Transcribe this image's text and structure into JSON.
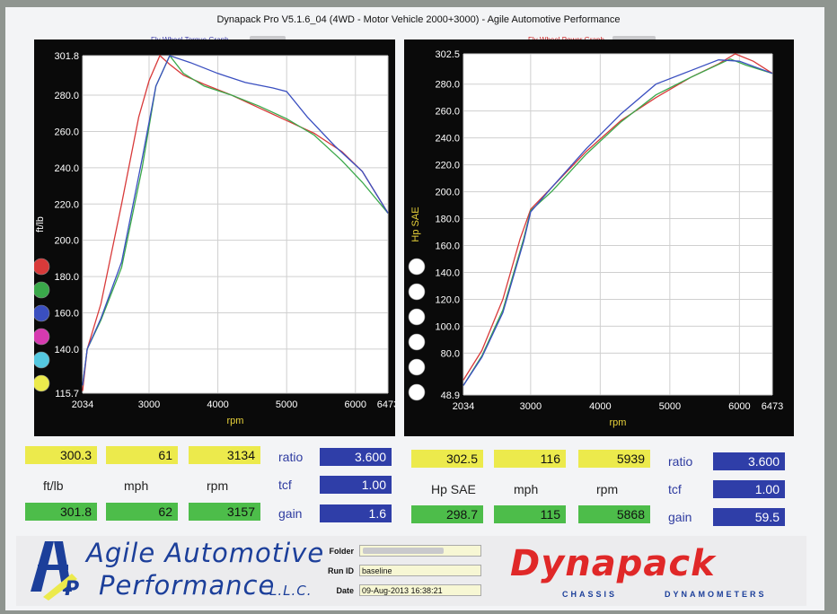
{
  "header": {
    "title": "Dynapack Pro V5.1.6_04 (4WD - Motor Vehicle 2000+3000) - Agile Automotive Performance"
  },
  "chart_data": [
    {
      "type": "line",
      "title": "Fly Wheel Torque Graph",
      "xlabel": "rpm",
      "ylabel": "ft/lb",
      "xlim": [
        2034,
        6473
      ],
      "ylim": [
        115.7,
        301.8
      ],
      "x_ticks": [
        "2034",
        "3000",
        "4000",
        "5000",
        "6000",
        "6473"
      ],
      "y_ticks": [
        "301.8",
        "280.0",
        "260.0",
        "240.0",
        "220.0",
        "200.0",
        "180.0",
        "160.0",
        "140.0",
        "115.7"
      ],
      "x_tick_values": [
        2034,
        3000,
        4000,
        5000,
        6000,
        6473
      ],
      "y_tick_values": [
        301.8,
        280,
        260,
        240,
        220,
        200,
        180,
        160,
        140,
        115.7
      ],
      "grid": true,
      "series": [
        {
          "color": "#d83a3a",
          "points": [
            [
              2034,
              117
            ],
            [
              2100,
              140
            ],
            [
              2300,
              165
            ],
            [
              2600,
              220
            ],
            [
              2850,
              268
            ],
            [
              3000,
              288
            ],
            [
              3157,
              301.8
            ],
            [
              3300,
              297
            ],
            [
              3500,
              291
            ],
            [
              3800,
              286
            ],
            [
              4200,
              280
            ],
            [
              4600,
              273
            ],
            [
              5000,
              266
            ],
            [
              5400,
              259
            ],
            [
              5800,
              249
            ],
            [
              6100,
              238
            ],
            [
              6473,
              215
            ]
          ]
        },
        {
          "color": "#3aa84a",
          "points": [
            [
              2034,
              120
            ],
            [
              2100,
              140
            ],
            [
              2300,
              156
            ],
            [
              2600,
              185
            ],
            [
              2900,
              240
            ],
            [
              3100,
              285
            ],
            [
              3300,
              301.8
            ],
            [
              3500,
              292
            ],
            [
              3800,
              285
            ],
            [
              4200,
              280
            ],
            [
              4600,
              274
            ],
            [
              5000,
              267
            ],
            [
              5400,
              258
            ],
            [
              5800,
              244
            ],
            [
              6100,
              232
            ],
            [
              6473,
              215
            ]
          ]
        },
        {
          "color": "#3a4fc0",
          "points": [
            [
              2034,
              120
            ],
            [
              2100,
              140
            ],
            [
              2300,
              157
            ],
            [
              2600,
              188
            ],
            [
              2900,
              245
            ],
            [
              3100,
              285
            ],
            [
              3300,
              301.8
            ],
            [
              3600,
              298
            ],
            [
              4000,
              292
            ],
            [
              4400,
              287
            ],
            [
              4800,
              284
            ],
            [
              5000,
              282
            ],
            [
              5300,
              268
            ],
            [
              5700,
              252
            ],
            [
              6100,
              238
            ],
            [
              6473,
              215
            ]
          ]
        }
      ]
    },
    {
      "type": "line",
      "title": "Fly Wheel Power Graph",
      "xlabel": "rpm",
      "ylabel": "Hp SAE",
      "xlim": [
        2034,
        6473
      ],
      "ylim": [
        48.9,
        302.5
      ],
      "x_ticks": [
        "2034",
        "3000",
        "4000",
        "5000",
        "6000",
        "6473"
      ],
      "y_ticks": [
        "302.5",
        "280.0",
        "260.0",
        "240.0",
        "220.0",
        "200.0",
        "180.0",
        "160.0",
        "140.0",
        "120.0",
        "100.0",
        "80.0",
        "48.9"
      ],
      "x_tick_values": [
        2034,
        3000,
        4000,
        5000,
        6000,
        6473
      ],
      "y_tick_values": [
        302.5,
        280,
        260,
        240,
        220,
        200,
        180,
        160,
        140,
        120,
        100,
        80,
        48.9
      ],
      "grid": true,
      "series": [
        {
          "color": "#d83a3a",
          "points": [
            [
              2034,
              60
            ],
            [
              2300,
              82
            ],
            [
              2600,
              120
            ],
            [
              2850,
              165
            ],
            [
              3000,
              187
            ],
            [
              3300,
              203
            ],
            [
              3800,
              230
            ],
            [
              4300,
              253
            ],
            [
              4800,
              270
            ],
            [
              5300,
              285
            ],
            [
              5700,
              295
            ],
            [
              5939,
              302.5
            ],
            [
              6200,
              297
            ],
            [
              6473,
              288
            ]
          ]
        },
        {
          "color": "#3aa84a",
          "points": [
            [
              2034,
              56
            ],
            [
              2300,
              78
            ],
            [
              2600,
              112
            ],
            [
              2900,
              165
            ],
            [
              3000,
              186
            ],
            [
              3300,
              200
            ],
            [
              3800,
              228
            ],
            [
              4300,
              252
            ],
            [
              4800,
              272
            ],
            [
              5300,
              285
            ],
            [
              5868,
              298.7
            ],
            [
              6100,
              294
            ],
            [
              6473,
              288
            ]
          ]
        },
        {
          "color": "#3a4fc0",
          "points": [
            [
              2034,
              56
            ],
            [
              2300,
              77
            ],
            [
              2600,
              110
            ],
            [
              2900,
              163
            ],
            [
              3000,
              185
            ],
            [
              3300,
              203
            ],
            [
              3800,
              232
            ],
            [
              4300,
              258
            ],
            [
              4800,
              280
            ],
            [
              5300,
              290
            ],
            [
              5700,
              298
            ],
            [
              6000,
              297
            ],
            [
              6473,
              288
            ]
          ]
        }
      ]
    }
  ],
  "left_readout": {
    "row1": [
      "300.3",
      "61",
      "3134"
    ],
    "units": [
      "ft/lb",
      "mph",
      "rpm"
    ],
    "row2": [
      "301.8",
      "62",
      "3157"
    ],
    "side_labels": [
      "ratio",
      "tcf",
      "gain"
    ],
    "side_values": [
      "3.600",
      "1.00",
      "1.6"
    ]
  },
  "right_readout": {
    "row1": [
      "302.5",
      "116",
      "5939"
    ],
    "units": [
      "Hp SAE",
      "mph",
      "rpm"
    ],
    "row2": [
      "298.7",
      "115",
      "5868"
    ],
    "side_labels": [
      "ratio",
      "tcf",
      "gain"
    ],
    "side_values": [
      "3.600",
      "1.00",
      "59.5"
    ]
  },
  "footer": {
    "logo_letters": "AAP",
    "company_line1": "Agile Automotive",
    "company_line2": "Performance",
    "company_suffix": "L.L.C.",
    "folder_label": "Folder",
    "folder_value": "",
    "run_label": "Run ID",
    "run_value": "baseline",
    "date_label": "Date",
    "date_value": "09-Aug-2013  16:38:21",
    "brand": "Dynapack",
    "brand_sub_left": "CHASSIS",
    "brand_sub_right": "DYNAMOMETERS"
  },
  "legend_dot_colors": [
    "#d83a3a",
    "#3aa84a",
    "#3a4fc0",
    "#d63ab0",
    "#54c8e0",
    "#ecea4c"
  ]
}
